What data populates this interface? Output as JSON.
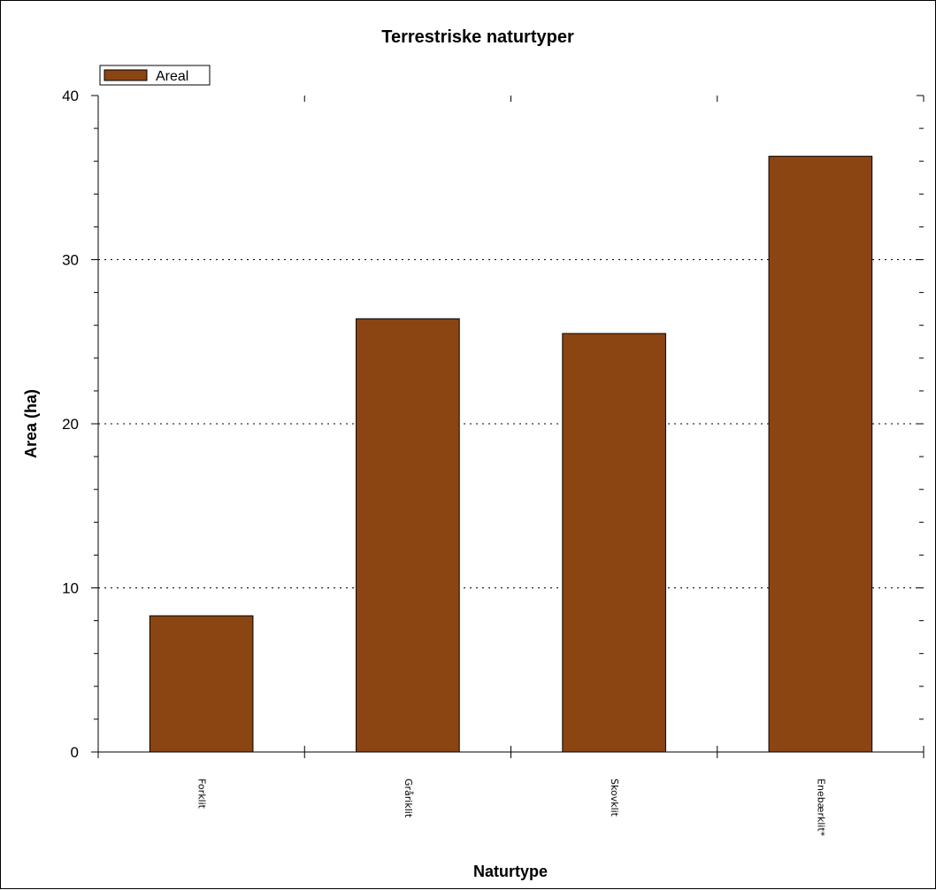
{
  "chart_data": {
    "type": "bar",
    "title": "Terrestriske naturtyper",
    "xlabel": "Naturtype",
    "ylabel": "Area (ha)",
    "categories": [
      "Forklit",
      "Gråriklit",
      "Skovklit",
      "Enebærklit*"
    ],
    "series": [
      {
        "name": "Areal",
        "values": [
          8.3,
          26.4,
          25.5,
          36.3
        ]
      }
    ],
    "ylim": [
      0,
      40
    ],
    "yticks": [
      0,
      10,
      20,
      30,
      40
    ],
    "grid": true,
    "legend_position": "top-left",
    "bar_color": "#8B4513"
  }
}
